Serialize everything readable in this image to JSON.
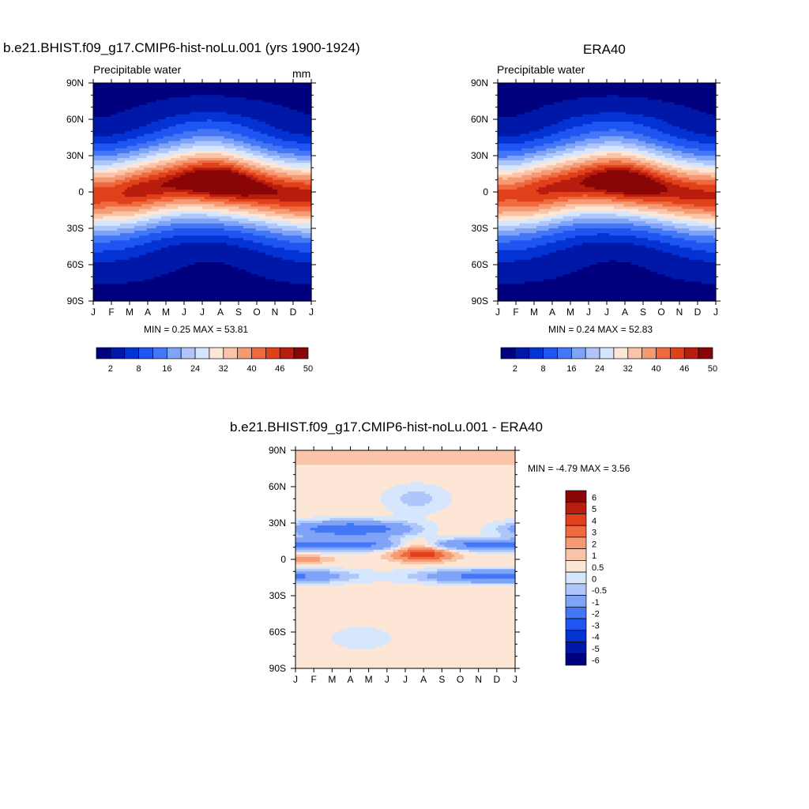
{
  "panels": [
    {
      "title": "b.e21.BHIST.f09_g17.CMIP6-hist-noLu.001 (yrs 1900-1924)",
      "subtitle": "Precipitable water",
      "units": "mm",
      "stats": "MIN =   0.25 MAX =  53.81"
    },
    {
      "title": "ERA40",
      "subtitle": "Precipitable water",
      "units": "",
      "stats": "MIN =   0.24 MAX =  52.83"
    },
    {
      "title": "b.e21.BHIST.f09_g17.CMIP6-hist-noLu.001 - ERA40",
      "subtitle": "",
      "units": "",
      "stats": "MIN =  -4.79 MAX =   3.56"
    }
  ],
  "chart_data": [
    {
      "type": "heatmap",
      "title": "b.e21.BHIST.f09_g17.CMIP6-hist-noLu.001 (yrs 1900-1924)",
      "subtitle": "Precipitable water",
      "units": "mm",
      "x_ticks": [
        "J",
        "F",
        "M",
        "A",
        "M",
        "J",
        "J",
        "A",
        "S",
        "O",
        "N",
        "D",
        "J"
      ],
      "y_ticks": [
        "90N",
        "60N",
        "30N",
        "0",
        "30S",
        "60S",
        "90S"
      ],
      "min": 0.25,
      "max": 53.81,
      "colorbar_labels": [
        "2",
        "8",
        "16",
        "24",
        "32",
        "40",
        "46",
        "50"
      ],
      "levels": [
        2,
        5,
        8,
        12,
        16,
        20,
        24,
        28,
        32,
        36,
        40,
        43,
        46,
        48,
        50
      ]
    },
    {
      "type": "heatmap",
      "title": "ERA40",
      "subtitle": "Precipitable water",
      "x_ticks": [
        "J",
        "F",
        "M",
        "A",
        "M",
        "J",
        "J",
        "A",
        "S",
        "O",
        "N",
        "D",
        "J"
      ],
      "y_ticks": [
        "90N",
        "60N",
        "30N",
        "0",
        "30S",
        "60S",
        "90S"
      ],
      "min": 0.24,
      "max": 52.83,
      "colorbar_labels": [
        "2",
        "8",
        "16",
        "24",
        "32",
        "40",
        "46",
        "50"
      ],
      "levels": [
        2,
        5,
        8,
        12,
        16,
        20,
        24,
        28,
        32,
        36,
        40,
        43,
        46,
        48,
        50
      ]
    },
    {
      "type": "heatmap",
      "title": "b.e21.BHIST.f09_g17.CMIP6-hist-noLu.001 - ERA40",
      "x_ticks": [
        "J",
        "F",
        "M",
        "A",
        "M",
        "J",
        "J",
        "A",
        "S",
        "O",
        "N",
        "D",
        "J"
      ],
      "y_ticks": [
        "90N",
        "60N",
        "30N",
        "0",
        "30S",
        "60S",
        "90S"
      ],
      "min": -4.79,
      "max": 3.56,
      "colorbar_labels": [
        "6",
        "5",
        "4",
        "3",
        "2",
        "1",
        "0.5",
        "0",
        "-0.5",
        "-1",
        "-2",
        "-3",
        "-4",
        "-5",
        "-6"
      ]
    }
  ],
  "colors": {
    "abs_palette": [
      "#00007f",
      "#0018a8",
      "#0433d4",
      "#1f55f0",
      "#4477f5",
      "#7fa3f7",
      "#aec6fa",
      "#d6e6fc",
      "#fde6d6",
      "#fac4a8",
      "#f59a73",
      "#f06a40",
      "#e0401a",
      "#b81d0d",
      "#8a0606"
    ],
    "diff_palette": [
      "#8a0606",
      "#b81d0d",
      "#e0401a",
      "#f06a40",
      "#f59a73",
      "#fac4a8",
      "#fde6d6",
      "#d6e6fc",
      "#aec6fa",
      "#7fa3f7",
      "#4477f5",
      "#1f55f0",
      "#0433d4",
      "#0018a8",
      "#00007f"
    ]
  }
}
